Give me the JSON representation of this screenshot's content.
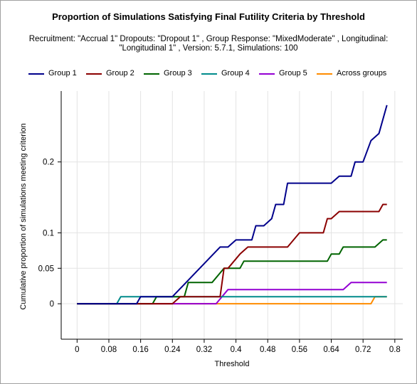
{
  "chart_data": {
    "type": "line",
    "title": "Proportion of Simulations Satisfying Final Futility Criteria by Threshold",
    "subtitle_line1": "Recruitment: \"Accrual 1\" Dropouts: \"Dropout 1\" , Group Response: \"MixedModerate\" , Longitudinal:",
    "subtitle_line2": "\"Longitudinal 1\" , Version: 5.7.1, Simulations: 100",
    "xlabel": "Threshold",
    "ylabel": "Cumulative proportion of simulations meeting criterion",
    "xlim": [
      -0.04,
      0.82
    ],
    "ylim": [
      -0.05,
      0.3
    ],
    "x_ticks": [
      0,
      0.08,
      0.16,
      0.24,
      0.32,
      0.4,
      0.48,
      0.56,
      0.64,
      0.72,
      0.8
    ],
    "x_tick_labels": [
      "0",
      "0.08",
      "0.16",
      "0.24",
      "0.32",
      "0.4",
      "0.48",
      "0.56",
      "0.64",
      "0.72",
      "0.8"
    ],
    "y_ticks": [
      0,
      0.05,
      0.1,
      0.2
    ],
    "y_tick_labels": [
      "0",
      "0.05",
      "0.1",
      "0.2"
    ],
    "grid": true,
    "legend_position": "top",
    "series": [
      {
        "name": "Group 1",
        "color": "#00008b",
        "x": [
          0,
          0.15,
          0.16,
          0.24,
          0.36,
          0.38,
          0.4,
          0.44,
          0.45,
          0.47,
          0.49,
          0.5,
          0.52,
          0.53,
          0.64,
          0.66,
          0.69,
          0.7,
          0.72,
          0.74,
          0.76,
          0.78
        ],
        "y": [
          0,
          0,
          0.01,
          0.01,
          0.08,
          0.08,
          0.09,
          0.09,
          0.11,
          0.11,
          0.12,
          0.14,
          0.14,
          0.17,
          0.17,
          0.18,
          0.18,
          0.2,
          0.2,
          0.23,
          0.24,
          0.28
        ]
      },
      {
        "name": "Group 2",
        "color": "#8b0000",
        "x": [
          0,
          0.24,
          0.26,
          0.36,
          0.37,
          0.38,
          0.41,
          0.43,
          0.53,
          0.56,
          0.62,
          0.63,
          0.64,
          0.66,
          0.76,
          0.77,
          0.78
        ],
        "y": [
          0,
          0,
          0.01,
          0.01,
          0.05,
          0.05,
          0.07,
          0.08,
          0.08,
          0.1,
          0.1,
          0.12,
          0.12,
          0.13,
          0.13,
          0.14,
          0.14
        ]
      },
      {
        "name": "Group 3",
        "color": "#006400",
        "x": [
          0,
          0.19,
          0.2,
          0.27,
          0.28,
          0.34,
          0.37,
          0.41,
          0.42,
          0.63,
          0.64,
          0.66,
          0.67,
          0.75,
          0.77,
          0.78
        ],
        "y": [
          0,
          0,
          0.01,
          0.01,
          0.03,
          0.03,
          0.05,
          0.05,
          0.06,
          0.06,
          0.07,
          0.07,
          0.08,
          0.08,
          0.09,
          0.09
        ]
      },
      {
        "name": "Group 4",
        "color": "#008b8b",
        "x": [
          0,
          0.1,
          0.11,
          0.78
        ],
        "y": [
          0,
          0,
          0.01,
          0.01
        ]
      },
      {
        "name": "Group 5",
        "color": "#9400d3",
        "x": [
          0,
          0.35,
          0.38,
          0.67,
          0.69,
          0.78
        ],
        "y": [
          0,
          0,
          0.02,
          0.02,
          0.03,
          0.03
        ]
      },
      {
        "name": "Across groups",
        "color": "#ff8c00",
        "x": [
          0,
          0.74,
          0.75,
          0.78
        ],
        "y": [
          0,
          0,
          0.01,
          0.01
        ]
      }
    ]
  }
}
